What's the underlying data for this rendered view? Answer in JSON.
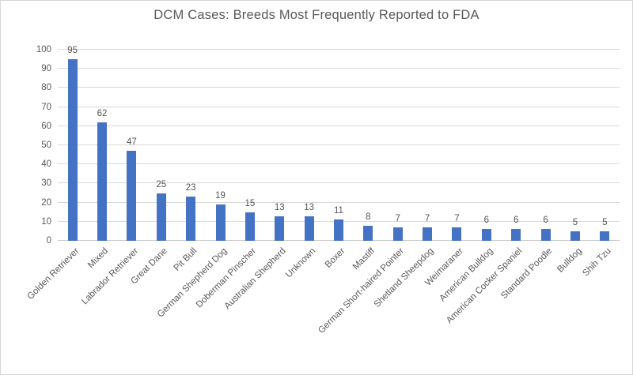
{
  "chart_data": {
    "type": "bar",
    "title": "DCM Cases: Breeds Most Frequently Reported to FDA",
    "categories": [
      "Golden Retriever",
      "Mixed",
      "Labrador Retriever",
      "Great Dane",
      "Pit Bull",
      "German Shepherd Dog",
      "Doberman Pinscher",
      "Australian Shepherd",
      "Unknown",
      "Boxer",
      "Mastiff",
      "German Short-haired Pointer",
      "Shetland Sheepdog",
      "Weimaraner",
      "American Bulldog",
      "American Cocker Spaniel",
      "Standard Poodle",
      "Bulldog",
      "Shih Tzu"
    ],
    "values": [
      95,
      62,
      47,
      25,
      23,
      19,
      15,
      13,
      13,
      11,
      8,
      7,
      7,
      7,
      6,
      6,
      6,
      5,
      5
    ],
    "xlabel": "",
    "ylabel": "",
    "ylim": [
      0,
      100
    ],
    "ytick_step": 10,
    "ytick_labels": [
      "0",
      "10",
      "20",
      "30",
      "40",
      "50",
      "60",
      "70",
      "80",
      "90",
      "100"
    ],
    "grid": true,
    "legend": false,
    "data_labels": true,
    "x_label_rotation_deg": -45,
    "bar_color": "#4472C4",
    "gridline_color": "#D9D9D9",
    "text_color": "#595959",
    "background_color": "#FFFFFF",
    "border_color": "#D5D5D5"
  }
}
